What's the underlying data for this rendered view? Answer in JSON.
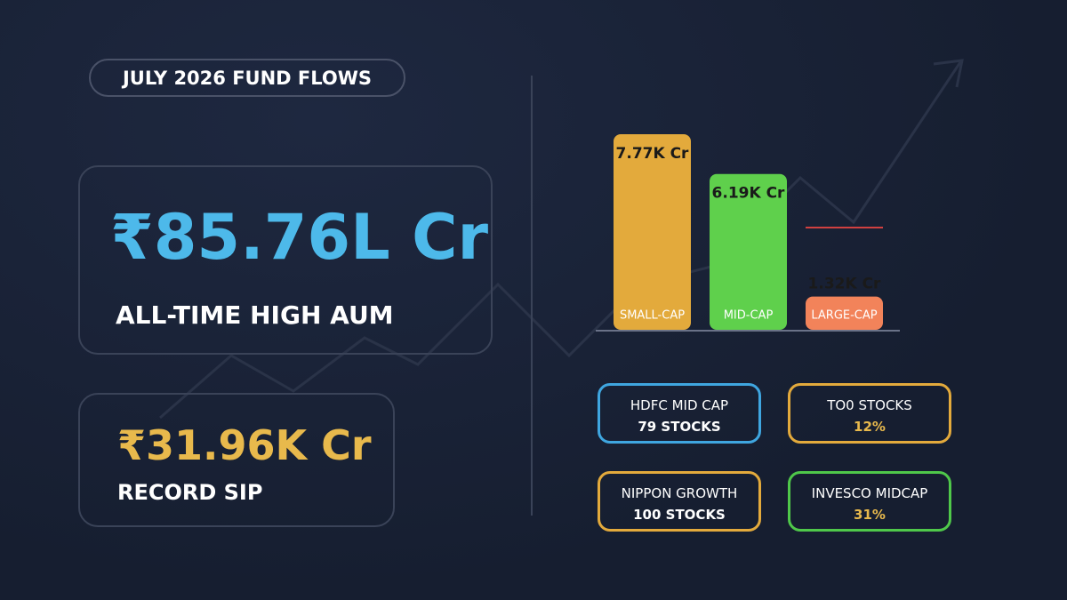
{
  "header": {
    "title": "JULY 2026 FUND FLOWS"
  },
  "cards": [
    {
      "value": "₹85.76L Cr",
      "label": "ALL-TIME HIGH AUM"
    },
    {
      "value": "₹31.96K Cr",
      "label": "RECORD SIP"
    }
  ],
  "chart_data": {
    "type": "bar",
    "categories": [
      "SMALL-CAP",
      "MID-CAP",
      "LARGE-CAP"
    ],
    "values": [
      7.77,
      6.19,
      1.32
    ],
    "value_labels": [
      "7.77K Cr",
      "6.19K Cr",
      "1.32K Cr"
    ],
    "colors": [
      "#e3aa3c",
      "#5fd04c",
      "#f2835a"
    ]
  },
  "boxes": [
    {
      "title": "HDFC MID CAP",
      "subtitle": "79 STOCKS"
    },
    {
      "title": "TO0 STOCKS",
      "subtitle": "12%"
    },
    {
      "title": "NIPPON GROWTH",
      "subtitle": "100 STOCKS"
    },
    {
      "title": "INVESCO MIDCAP",
      "subtitle": "31%"
    }
  ]
}
